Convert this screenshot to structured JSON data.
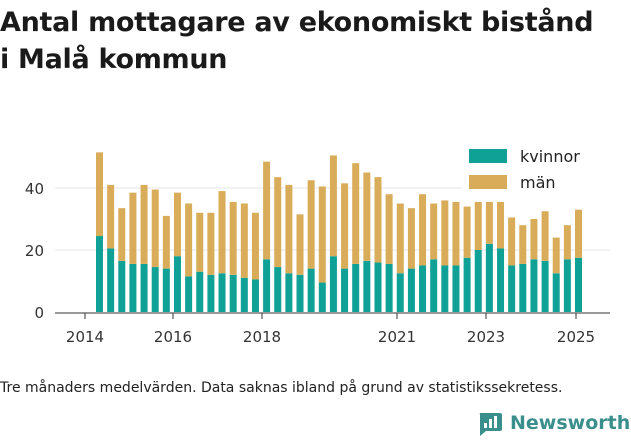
{
  "title_line1": "Antal mottagare av ekonomiskt bistånd",
  "title_line2": "i Malå kommun",
  "caption": "Tre månaders medelvärden. Data saknas ibland på grund av statistikssekretess.",
  "brand": {
    "name": "Newsworthy",
    "icon": "newsworthy-logo-icon",
    "color": "#3a8f8c"
  },
  "chart_data": {
    "type": "bar",
    "stacked": true,
    "title": "Antal mottagare av ekonomiskt bistånd i Malå kommun",
    "xlabel": "",
    "ylabel": "",
    "ylim": [
      0,
      55
    ],
    "yticks": [
      0,
      20,
      40
    ],
    "xticks": [
      "2014",
      "2016",
      "2018",
      "2021",
      "2023",
      "2025"
    ],
    "grid": true,
    "legend_position": "top-right",
    "colors": {
      "kvinnor": "#0fa196",
      "män": "#d9ac5a"
    },
    "categories": [
      "2014-06",
      "2014-09",
      "2014-12",
      "2015-03",
      "2015-06",
      "2015-09",
      "2015-12",
      "2016-03",
      "2016-06",
      "2016-09",
      "2016-12",
      "2017-03",
      "2017-06",
      "2017-09",
      "2017-12",
      "2018-03",
      "2018-06",
      "2018-09",
      "2018-12",
      "2019-03",
      "2019-06",
      "2019-09",
      "2019-12",
      "2020-03",
      "2020-06",
      "2020-09",
      "2020-12",
      "2021-03",
      "2021-06",
      "2021-09",
      "2021-12",
      "2022-03",
      "2022-06",
      "2022-09",
      "2022-12",
      "2023-03",
      "2023-06",
      "2023-09",
      "2023-12",
      "2024-03",
      "2024-06",
      "2024-09",
      "2024-12",
      "2025-03"
    ],
    "series": [
      {
        "name": "kvinnor",
        "values": [
          24.5,
          20.5,
          16.5,
          15.5,
          15.5,
          14.5,
          14,
          18,
          11.5,
          13,
          12,
          12.5,
          12,
          11,
          10.5,
          17,
          14.5,
          12.5,
          12,
          14,
          9.5,
          18,
          14,
          15.5,
          16.5,
          16,
          15.5,
          12.5,
          14,
          15,
          17,
          15,
          15,
          17.5,
          20,
          22,
          20.5,
          15,
          15.5,
          17,
          16.5,
          12.5,
          17,
          17.5
        ]
      },
      {
        "name": "män",
        "values": [
          27,
          20.5,
          17,
          23,
          25.5,
          25,
          17,
          20.5,
          23.5,
          19,
          20,
          26.5,
          23.5,
          24,
          21.5,
          31.5,
          29,
          28.5,
          19.5,
          28.5,
          31,
          32.5,
          27.5,
          32.5,
          28.5,
          27.5,
          22.5,
          22.5,
          19.5,
          23,
          18,
          21,
          20.5,
          16.5,
          15.5,
          13.5,
          15,
          15.5,
          12.5,
          13,
          16,
          11.5,
          11,
          15.5
        ]
      }
    ]
  }
}
